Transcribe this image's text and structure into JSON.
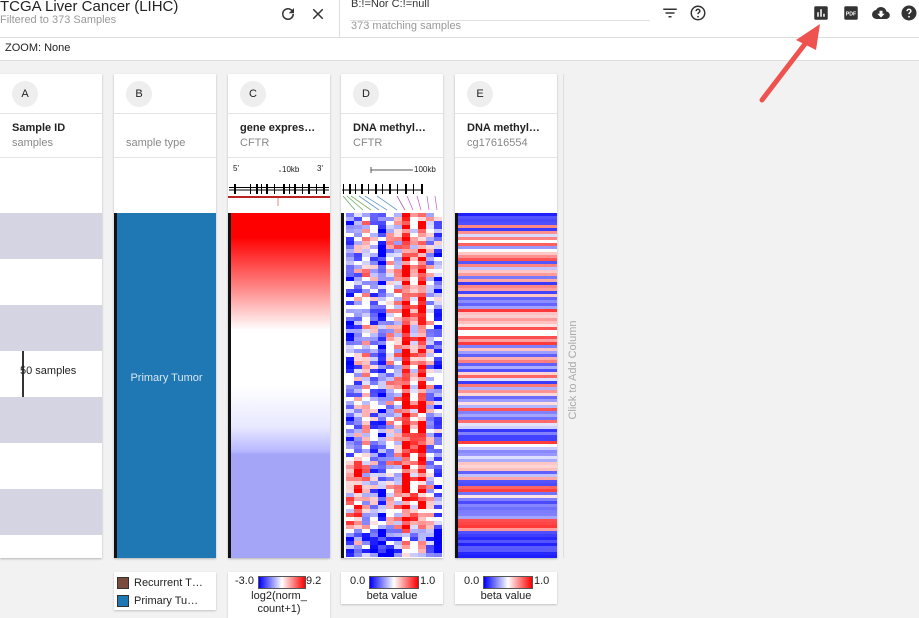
{
  "header": {
    "title": "TCGA Liver Cancer (LIHC)",
    "subtitle": "Filtered to 373 Samples",
    "search_query": "B:!=Nor C:!=null",
    "match_count": "373 matching samples"
  },
  "zoom": {
    "label": "ZOOM: None"
  },
  "columns": [
    {
      "id": "A",
      "name": "Sample ID",
      "subtitle": "samples"
    },
    {
      "id": "B",
      "name": "",
      "subtitle": "sample type"
    },
    {
      "id": "C",
      "name": "gene expres…",
      "subtitle": "CFTR",
      "scale_label": "10kb",
      "five_prime": "5'",
      "three_prime": "3'"
    },
    {
      "id": "D",
      "name": "DNA methyl…",
      "subtitle": "CFTR",
      "scale_label": "100kb"
    },
    {
      "id": "E",
      "name": "DNA methyl…",
      "subtitle": "cg17616554"
    }
  ],
  "samples_label": "50 samples",
  "primary_tumor_label": "Primary Tumor",
  "add_column": "Click to Add Column",
  "legends": {
    "sample_type": [
      {
        "label": "Recurrent T…",
        "color": "#7a4a3e"
      },
      {
        "label": "Primary Tu…",
        "color": "#1f77b4"
      }
    ],
    "expression": {
      "min": "-3.0",
      "max": "9.2",
      "unit_line1": "log2(norm_",
      "unit_line2": "count+1)"
    },
    "methylation_d": {
      "min": "0.0",
      "max": "1.0",
      "unit": "beta value"
    },
    "methylation_e": {
      "min": "0.0",
      "max": "1.0",
      "unit": "beta value"
    }
  },
  "colors": {
    "primary_tumor": "#1f77b4",
    "low": "#0000ff",
    "high": "#ff0000",
    "accent_arrow": "#ef5350",
    "band": "#d4d4e2"
  }
}
